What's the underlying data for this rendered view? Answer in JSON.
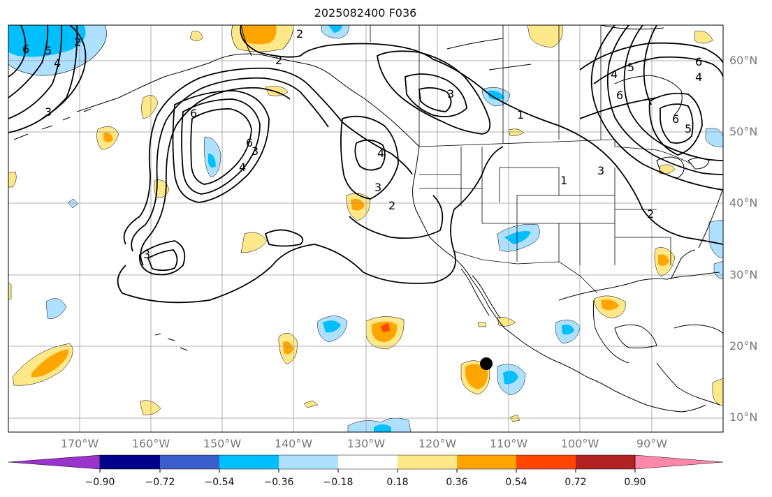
{
  "title": "2025082400 F036",
  "lon_labels": [
    "170°W",
    "160°W",
    "150°W",
    "140°W",
    "130°W",
    "120°W",
    "110°W",
    "100°W",
    "90°W"
  ],
  "lat_labels": [
    "60°N",
    "50°N",
    "40°N",
    "30°N",
    "20°N",
    "10°N"
  ],
  "colorbar": {
    "ticks": [
      "−0.90",
      "−0.72",
      "−0.54",
      "−0.36",
      "−0.18",
      "0.18",
      "0.36",
      "0.54",
      "0.72",
      "0.90"
    ],
    "colors": [
      "#9933cc",
      "#00008b",
      "#3a5fcd",
      "#00bfff",
      "#aee0ff",
      "#ffffff",
      "#ffe88a",
      "#ffa500",
      "#ff4500",
      "#b22222",
      "#ff88aa"
    ]
  },
  "contour_labels": [
    "2",
    "2",
    "2",
    "3",
    "3",
    "3",
    "3",
    "4",
    "4",
    "6",
    "6",
    "1",
    "1",
    "2",
    "3",
    "3",
    "4",
    "5",
    "6",
    "6",
    "4",
    "5",
    "6",
    "6",
    "5",
    "4",
    "2"
  ],
  "marker": "storm-center"
}
